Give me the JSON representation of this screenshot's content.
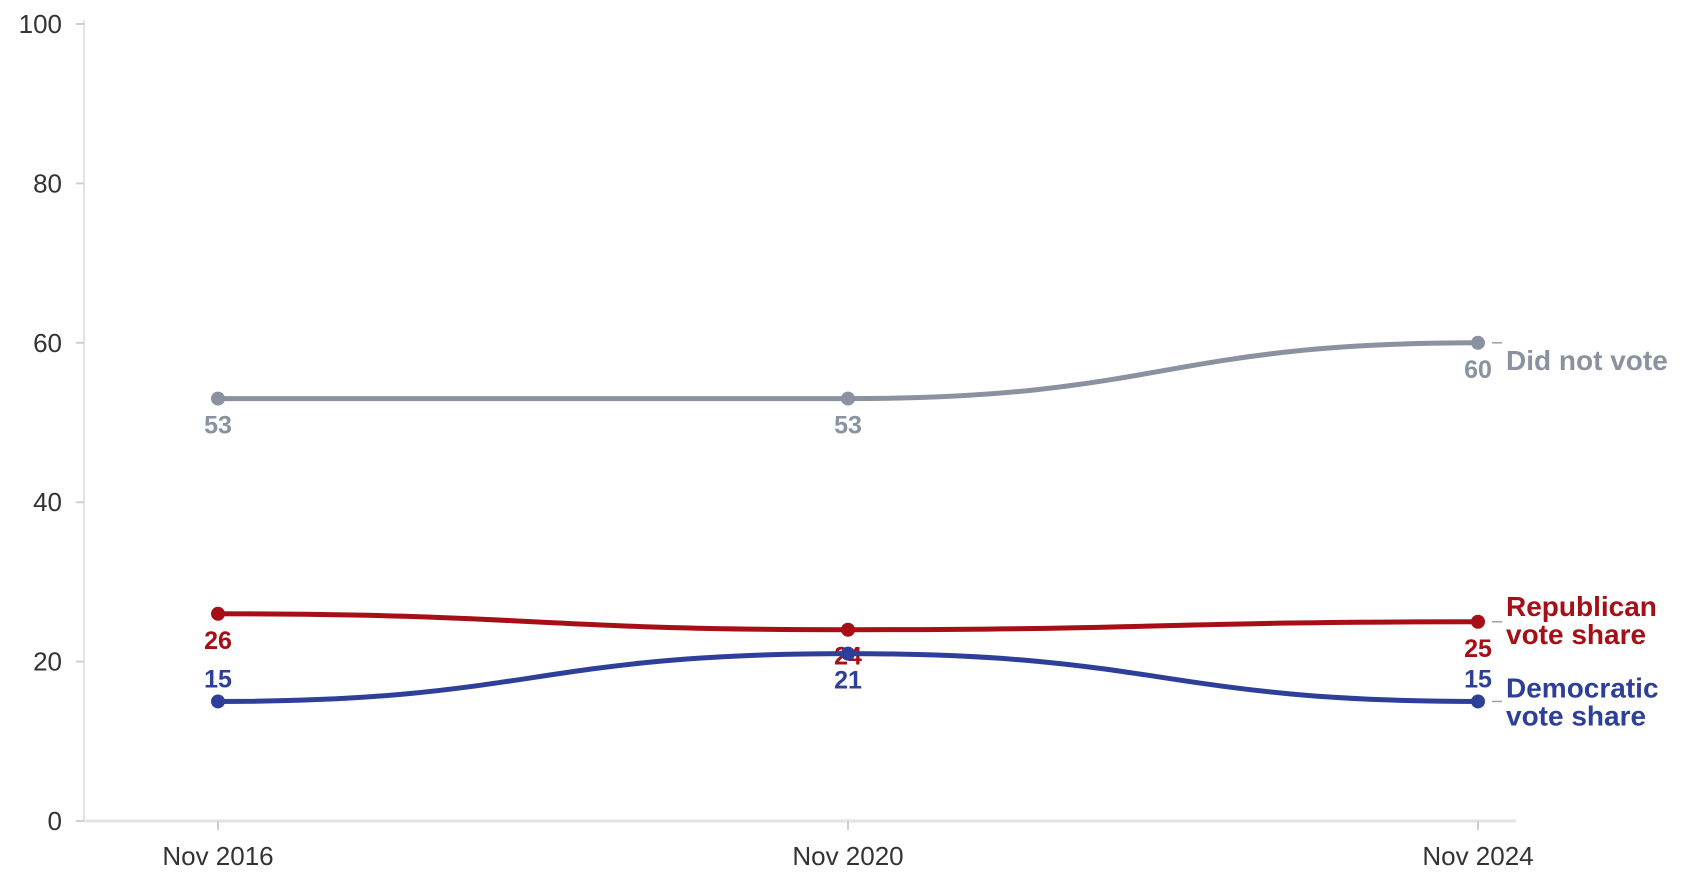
{
  "chart_data": {
    "type": "line",
    "x": [
      "Nov 2016",
      "Nov 2020",
      "Nov 2024"
    ],
    "ylim": [
      0,
      100
    ],
    "yticks": [
      "0",
      "20",
      "40",
      "60",
      "80",
      "100"
    ],
    "grid": false,
    "legend": "inline-right",
    "series": [
      {
        "id": "did_not_vote",
        "label_lines": [
          "Did not vote"
        ],
        "color": "#8a929f",
        "values": [
          53,
          53,
          60
        ],
        "data_labels": [
          "53",
          "53",
          "60"
        ]
      },
      {
        "id": "republican",
        "label_lines": [
          "Republican",
          "vote share"
        ],
        "color": "#a50f15",
        "values": [
          26,
          24,
          25
        ],
        "data_labels": [
          "26",
          "24",
          "25"
        ]
      },
      {
        "id": "democratic",
        "label_lines": [
          "Democratic",
          "vote share"
        ],
        "color": "#2e3f99",
        "values": [
          15,
          21,
          15
        ],
        "data_labels": [
          "15",
          "21",
          "15"
        ]
      }
    ]
  }
}
